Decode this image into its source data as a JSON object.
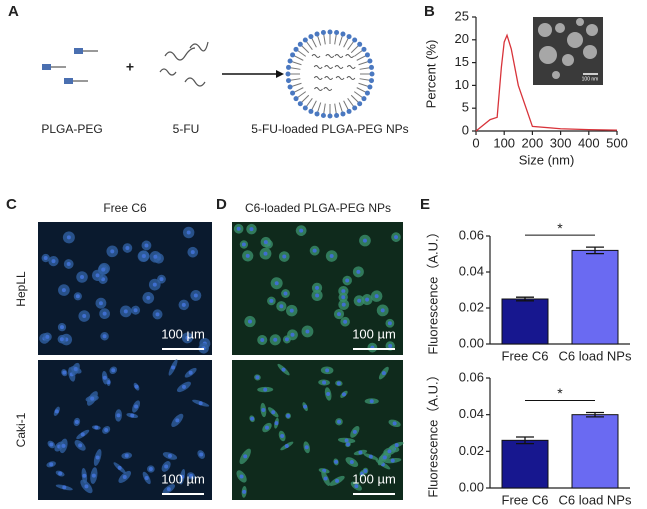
{
  "panel_labels": [
    "A",
    "B",
    "C",
    "D",
    "E"
  ],
  "diagram": {
    "labels": [
      "PLGA-PEG",
      "5-FU",
      "5-FU-loaded PLGA-PEG NPs"
    ],
    "plus": "+"
  },
  "inset_scale": "100 nm",
  "micrographs": {
    "columns": [
      "Free C6",
      "C6-loaded PLGA-PEG NPs"
    ],
    "rows": [
      "HepLL",
      "Caki-1"
    ],
    "scale_bar": "100 µm"
  },
  "chart_data": [
    {
      "type": "line",
      "xlabel": "Size (nm)",
      "ylabel": "Percent (%)",
      "x": [
        0,
        50,
        75,
        90,
        100,
        110,
        125,
        150,
        200,
        300,
        400,
        500
      ],
      "values": [
        0,
        2.5,
        3,
        14,
        19.5,
        21,
        18,
        10,
        1,
        0.5,
        0.3,
        0.2
      ],
      "color": "#d8333a",
      "xlim": [
        0,
        500
      ],
      "xticks": [
        0,
        100,
        200,
        300,
        400,
        500
      ],
      "ylim": [
        0,
        25
      ],
      "yticks": [
        0,
        5,
        10,
        15,
        20,
        25
      ]
    },
    {
      "type": "bar",
      "ylabel": "Fluorescence（A.U.）",
      "categories": [
        "Free C6",
        "C6 load NPs"
      ],
      "values": [
        0.025,
        0.052
      ],
      "errors": [
        0.001,
        0.0018
      ],
      "colors": [
        "#17178f",
        "#6a6af2"
      ],
      "annotation": "*",
      "ylim": [
        0,
        0.06
      ],
      "yticks": [
        {
          "value": 0,
          "label": "0.00"
        },
        {
          "value": 0.02,
          "label": "0.02"
        },
        {
          "value": 0.04,
          "label": "0.04"
        },
        {
          "value": 0.06,
          "label": "0.06"
        }
      ]
    },
    {
      "type": "bar",
      "ylabel": "Fluorescence（A.U.）",
      "categories": [
        "Free C6",
        "C6 load NPs"
      ],
      "values": [
        0.026,
        0.04
      ],
      "errors": [
        0.0018,
        0.0012
      ],
      "colors": [
        "#17178f",
        "#6a6af2"
      ],
      "annotation": "*",
      "ylim": [
        0,
        0.06
      ],
      "yticks": [
        {
          "value": 0,
          "label": "0.00"
        },
        {
          "value": 0.02,
          "label": "0.02"
        },
        {
          "value": 0.04,
          "label": "0.04"
        },
        {
          "value": 0.06,
          "label": "0.06"
        }
      ]
    }
  ]
}
